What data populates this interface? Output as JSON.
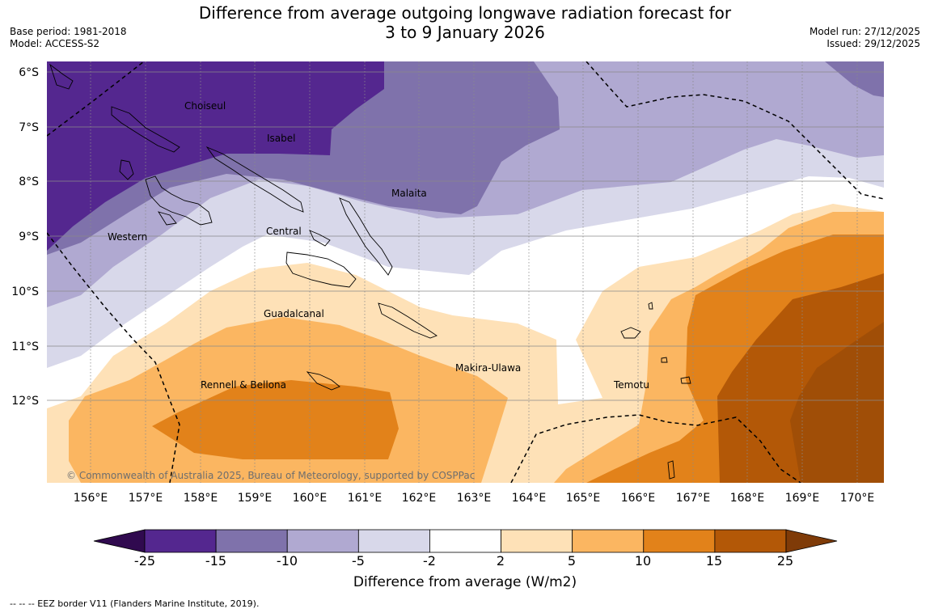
{
  "header": {
    "title_line1": "Difference from average outgoing longwave radiation forecast for",
    "title_line2": "3 to 9 January 2026",
    "base_period": "Base period: 1981-2018",
    "model": "Model: ACCESS-S2",
    "model_run": "Model run: 27/12/2025",
    "issued": "Issued: 29/12/2025"
  },
  "map": {
    "lat_labels": [
      "6°S",
      "7°S",
      "8°S",
      "9°S",
      "10°S",
      "11°S",
      "12°S"
    ],
    "lon_labels": [
      "156°E",
      "157°E",
      "158°E",
      "159°E",
      "160°E",
      "161°E",
      "162°E",
      "163°E",
      "164°E",
      "165°E",
      "166°E",
      "167°E",
      "168°E",
      "169°E",
      "170°E"
    ],
    "regions": {
      "choiseul": "Choiseul",
      "isabel": "Isabel",
      "malaita": "Malaita",
      "central": "Central",
      "western": "Western",
      "guadalcanal": "Guadalcanal",
      "makira": "Makira-Ulawa",
      "temotu": "Temotu",
      "rennell": "Rennell & Bellona"
    },
    "copyright": "© Commonwealth of Australia 2025, Bureau of Meteorology, supported by COSPPac"
  },
  "colorbar": {
    "ticks": [
      "-25",
      "-15",
      "-10",
      "-5",
      "-2",
      "2",
      "5",
      "10",
      "15",
      "25"
    ],
    "colors": [
      "#54278f",
      "#7f72ab",
      "#b0a9d1",
      "#d8d8ea",
      "#ffffff",
      "#fee1b7",
      "#fbb661",
      "#e2821a",
      "#b35807"
    ],
    "extend_low_color": "#300a4f",
    "extend_high_color": "#7f3b08",
    "label": "Difference from average (W/m2)"
  },
  "footer": {
    "eez_legend": "--  --  -- EEZ border V11 (Flanders Marine Institute, 2019)."
  }
}
